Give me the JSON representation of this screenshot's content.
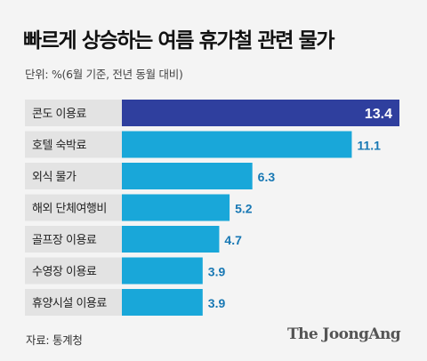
{
  "header": {
    "title": "빠르게 상승하는 여름 휴가철 관련 물가",
    "subtitle": "단위: %(6월 기준, 전년 동월 대비)"
  },
  "footer": {
    "source": "자료: 통계청",
    "logo": "The JoongAng"
  },
  "colors": {
    "highlight_bar": "#2f3f9e",
    "bar": "#19a7d9",
    "category_box": "#e3e3e3",
    "highlight_label": "#ffffff",
    "value_label": "#1878b4"
  },
  "chart_data": {
    "type": "bar",
    "orientation": "horizontal",
    "title": "빠르게 상승하는 여름 휴가철 관련 물가",
    "subtitle": "단위: %(6월 기준, 전년 동월 대비)",
    "categories": [
      "콘도 이용료",
      "호텔 숙박료",
      "외식 물가",
      "해외 단체여행비",
      "골프장 이용료",
      "수영장 이용료",
      "휴양시설 이용료"
    ],
    "values": [
      13.4,
      11.1,
      6.3,
      5.2,
      4.7,
      3.9,
      3.9
    ],
    "value_labels": [
      "13.4",
      "11.1",
      "6.3",
      "5.2",
      "4.7",
      "3.9",
      "3.9"
    ],
    "highlighted_index": 0,
    "xlim": [
      0,
      13.4
    ],
    "grid": false,
    "legend": "none"
  }
}
